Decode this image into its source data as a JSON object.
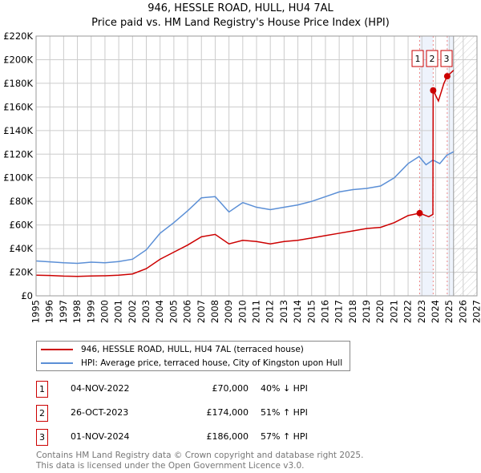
{
  "title": "946, HESSLE ROAD, HULL, HU4 7AL",
  "subtitle": "Price paid vs. HM Land Registry's House Price Index (HPI)",
  "chart_data": {
    "type": "line",
    "xlim": [
      1995,
      2027
    ],
    "ylim": [
      0,
      220000
    ],
    "x_ticks": [
      "1995",
      "1996",
      "1997",
      "1998",
      "1999",
      "2000",
      "2001",
      "2002",
      "2003",
      "2004",
      "2005",
      "2006",
      "2007",
      "2008",
      "2009",
      "2010",
      "2011",
      "2012",
      "2013",
      "2014",
      "2015",
      "2016",
      "2017",
      "2018",
      "2019",
      "2020",
      "2021",
      "2022",
      "2023",
      "2024",
      "2025",
      "2026",
      "2027"
    ],
    "y_ticks": [
      "£0",
      "£20K",
      "£40K",
      "£60K",
      "£80K",
      "£100K",
      "£120K",
      "£140K",
      "£160K",
      "£180K",
      "£200K",
      "£220K"
    ],
    "grid": true,
    "series": [
      {
        "name": "946, HESSLE ROAD, HULL, HU4 7AL (terraced house)",
        "color": "#cc0000",
        "x": [
          1995,
          1996,
          1997,
          1998,
          1999,
          2000,
          2001,
          2002,
          2003,
          2004,
          2005,
          2006,
          2007,
          2008,
          2009,
          2010,
          2011,
          2012,
          2013,
          2014,
          2015,
          2016,
          2017,
          2018,
          2019,
          2020,
          2021,
          2022,
          2022.84,
          2023.5,
          2023.8,
          2023.82,
          2024.2,
          2024.6,
          2024.84,
          2025.3
        ],
        "y": [
          17500,
          17200,
          16700,
          16500,
          16800,
          17000,
          17500,
          18500,
          23000,
          31000,
          37000,
          43000,
          50000,
          52000,
          44000,
          47000,
          46000,
          44000,
          46000,
          47000,
          49000,
          51000,
          53000,
          55000,
          57000,
          58000,
          62000,
          68000,
          70000,
          67000,
          69000,
          174000,
          165000,
          180000,
          186000,
          191000
        ]
      },
      {
        "name": "HPI: Average price, terraced house, City of Kingston upon Hull",
        "color": "#5b8fd6",
        "x": [
          1995,
          1996,
          1997,
          1998,
          1999,
          2000,
          2001,
          2002,
          2003,
          2004,
          2005,
          2006,
          2007,
          2008,
          2009,
          2010,
          2011,
          2012,
          2013,
          2014,
          2015,
          2016,
          2017,
          2018,
          2019,
          2020,
          2021,
          2022,
          2022.8,
          2023.3,
          2023.8,
          2024.3,
          2024.8,
          2025.3
        ],
        "y": [
          29500,
          28800,
          28000,
          27500,
          28500,
          28000,
          29000,
          31000,
          39000,
          53000,
          62000,
          72000,
          83000,
          84000,
          71000,
          79000,
          75000,
          73000,
          75000,
          77000,
          80000,
          84000,
          88000,
          90000,
          91000,
          93000,
          100000,
          112000,
          118000,
          111000,
          115000,
          112000,
          119000,
          122000
        ]
      }
    ],
    "sales": [
      {
        "label": "1",
        "x": 2022.84,
        "y": 70000
      },
      {
        "label": "2",
        "x": 2023.82,
        "y": 174000
      },
      {
        "label": "3",
        "x": 2024.84,
        "y": 186000
      }
    ],
    "shaded_ranges": [
      [
        2022.84,
        2023.82
      ],
      [
        2024.84,
        2025.3
      ]
    ],
    "forecast_hatched_from": 2025.3,
    "legend": "below"
  },
  "legend": [
    "946, HESSLE ROAD, HULL, HU4 7AL (terraced house)",
    "HPI: Average price, terraced house, City of Kingston upon Hull"
  ],
  "transactions": [
    {
      "n": "1",
      "date": "04-NOV-2022",
      "price": "£70,000",
      "hpi": "40% ↓ HPI"
    },
    {
      "n": "2",
      "date": "26-OCT-2023",
      "price": "£174,000",
      "hpi": "51% ↑ HPI"
    },
    {
      "n": "3",
      "date": "01-NOV-2024",
      "price": "£186,000",
      "hpi": "57% ↑ HPI"
    }
  ],
  "footer": [
    "Contains HM Land Registry data © Crown copyright and database right 2025.",
    "This data is licensed under the Open Government Licence v3.0."
  ]
}
